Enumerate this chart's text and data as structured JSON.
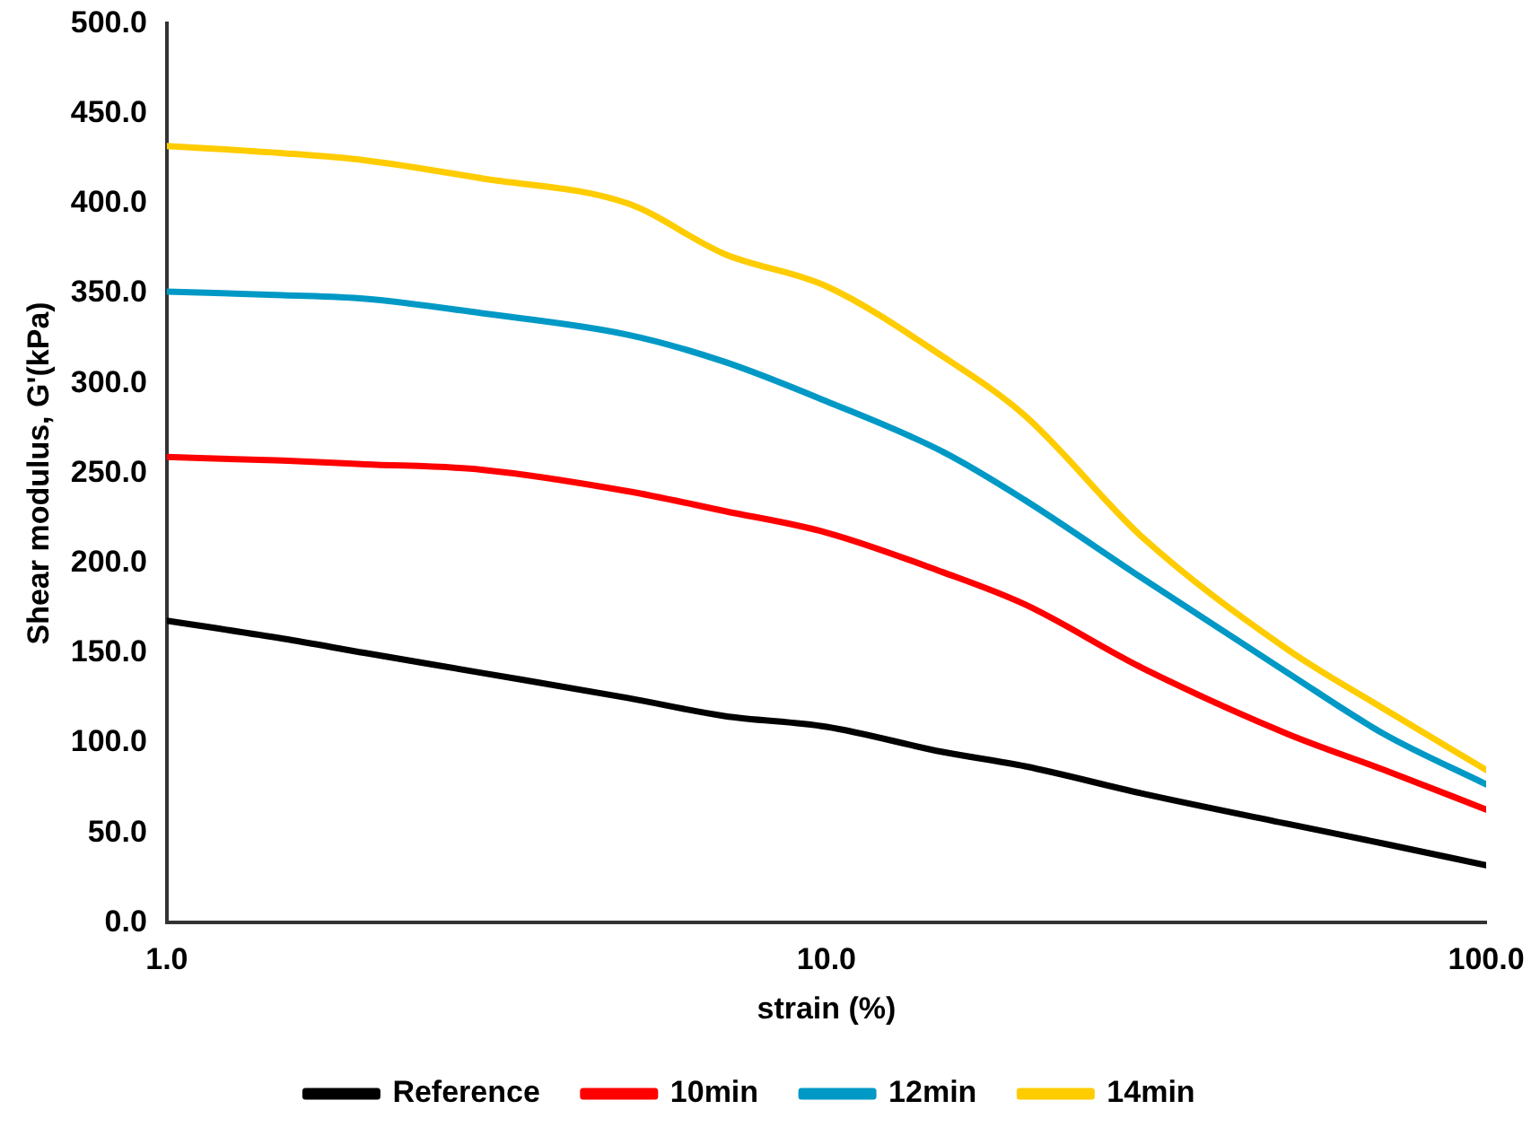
{
  "chart_data": {
    "type": "line",
    "xlabel": "strain (%)",
    "ylabel": "Shear modulus, G'(kPa)",
    "log": "x",
    "grid": false,
    "legend": "bottom",
    "marker": "none",
    "line_style": "solid",
    "x": [
      1,
      1.5,
      2,
      3,
      5,
      7,
      10,
      15,
      20,
      30,
      50,
      70,
      100
    ],
    "xlim": [
      1,
      100
    ],
    "xticks": [
      {
        "value": 1,
        "label": "1.0"
      },
      {
        "value": 10,
        "label": "10.0"
      },
      {
        "value": 100,
        "label": "100.0"
      }
    ],
    "ylim": [
      0,
      500
    ],
    "yticks": [
      {
        "value": 0,
        "label": "0.0"
      },
      {
        "value": 50,
        "label": "50.0"
      },
      {
        "value": 100,
        "label": "100.0"
      },
      {
        "value": 150,
        "label": "150.0"
      },
      {
        "value": 200,
        "label": "200.0"
      },
      {
        "value": 250,
        "label": "250.0"
      },
      {
        "value": 300,
        "label": "300.0"
      },
      {
        "value": 350,
        "label": "350.0"
      },
      {
        "value": 400,
        "label": "400.0"
      },
      {
        "value": 450,
        "label": "450.0"
      },
      {
        "value": 500,
        "label": "500.0"
      }
    ],
    "series": [
      {
        "name": "Reference",
        "color": "#000000",
        "values": [
          168,
          158,
          150,
          139,
          125,
          115,
          109,
          95,
          87,
          72,
          55,
          44,
          32
        ]
      },
      {
        "name": "10min",
        "color": "#ff0000",
        "values": [
          259,
          257,
          255,
          252,
          240,
          229,
          217,
          195,
          177,
          142,
          105,
          85,
          63
        ]
      },
      {
        "name": "12min",
        "color": "#0099c6",
        "values": [
          351,
          349,
          347,
          339,
          327,
          312,
          290,
          262,
          235,
          192,
          139,
          105,
          77
        ]
      },
      {
        "name": "14min",
        "color": "#ffcc00",
        "values": [
          432,
          428,
          424,
          414,
          400,
          372,
          354,
          315,
          282,
          215,
          152,
          119,
          85
        ]
      }
    ]
  }
}
